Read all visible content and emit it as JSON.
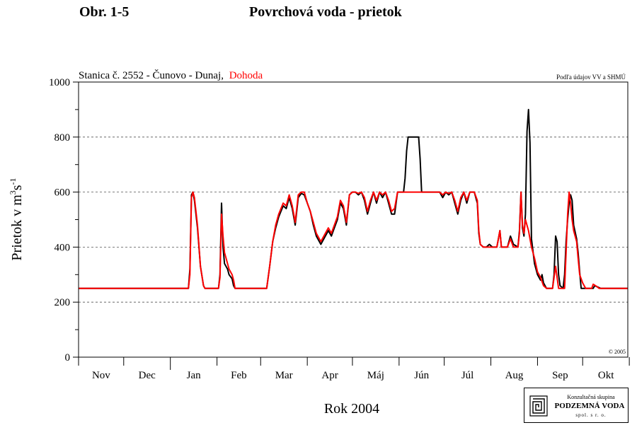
{
  "figure": {
    "label": "Obr. 1-5",
    "title": "Povrchová voda - prietok"
  },
  "chart_data": {
    "type": "line",
    "station_text": "Stanica č. 2552 - Čunovo - Dunaj,",
    "station_highlight": "Dohoda",
    "source_note": "Podľa údajov VV a SHMÚ",
    "copyright": "© 2005",
    "ylabel_main": "Prietok  v  m",
    "ylabel_sup1": "3",
    "ylabel_mid": "s",
    "ylabel_sup2": "-1",
    "xlabel": "Rok 2004",
    "ylim": [
      0,
      1000
    ],
    "yticks": [
      "0",
      "200",
      "400",
      "600",
      "800",
      "1000"
    ],
    "grid_lines": [
      200,
      400,
      600,
      800
    ],
    "xlim": [
      0,
      365
    ],
    "months": [
      "Nov",
      "Dec",
      "Jan",
      "Feb",
      "Mar",
      "Apr",
      "Máj",
      "Jún",
      "Júl",
      "Aug",
      "Sep",
      "Okt"
    ],
    "month_lengths": [
      30,
      31,
      31,
      29,
      31,
      30,
      31,
      30,
      31,
      31,
      30,
      31
    ],
    "series": [
      {
        "name": "",
        "color": "#000000",
        "points": [
          [
            0,
            250
          ],
          [
            73,
            250
          ],
          [
            74,
            320
          ],
          [
            75,
            590
          ],
          [
            76,
            600
          ],
          [
            77,
            570
          ],
          [
            79,
            470
          ],
          [
            81,
            330
          ],
          [
            83,
            260
          ],
          [
            84,
            250
          ],
          [
            93,
            250
          ],
          [
            94,
            300
          ],
          [
            95,
            560
          ],
          [
            96,
            400
          ],
          [
            97,
            340
          ],
          [
            99,
            320
          ],
          [
            100,
            300
          ],
          [
            102,
            285
          ],
          [
            103,
            260
          ],
          [
            104,
            250
          ],
          [
            125,
            250
          ],
          [
            127,
            330
          ],
          [
            129,
            420
          ],
          [
            131,
            470
          ],
          [
            133,
            510
          ],
          [
            136,
            550
          ],
          [
            138,
            540
          ],
          [
            140,
            580
          ],
          [
            142,
            540
          ],
          [
            144,
            480
          ],
          [
            146,
            580
          ],
          [
            148,
            595
          ],
          [
            150,
            590
          ],
          [
            152,
            560
          ],
          [
            154,
            530
          ],
          [
            156,
            480
          ],
          [
            158,
            440
          ],
          [
            161,
            410
          ],
          [
            164,
            440
          ],
          [
            166,
            460
          ],
          [
            168,
            440
          ],
          [
            170,
            470
          ],
          [
            172,
            500
          ],
          [
            174,
            560
          ],
          [
            176,
            540
          ],
          [
            178,
            480
          ],
          [
            180,
            590
          ],
          [
            182,
            600
          ],
          [
            184,
            600
          ],
          [
            186,
            590
          ],
          [
            188,
            600
          ],
          [
            190,
            570
          ],
          [
            192,
            520
          ],
          [
            194,
            560
          ],
          [
            196,
            600
          ],
          [
            198,
            560
          ],
          [
            200,
            600
          ],
          [
            202,
            580
          ],
          [
            204,
            600
          ],
          [
            206,
            560
          ],
          [
            208,
            520
          ],
          [
            210,
            520
          ],
          [
            212,
            600
          ],
          [
            214,
            600
          ],
          [
            216,
            600
          ],
          [
            217,
            650
          ],
          [
            218,
            750
          ],
          [
            219,
            800
          ],
          [
            226,
            800
          ],
          [
            227,
            720
          ],
          [
            228,
            600
          ],
          [
            240,
            600
          ],
          [
            242,
            580
          ],
          [
            244,
            600
          ],
          [
            246,
            590
          ],
          [
            248,
            600
          ],
          [
            250,
            560
          ],
          [
            252,
            520
          ],
          [
            254,
            570
          ],
          [
            256,
            600
          ],
          [
            258,
            560
          ],
          [
            260,
            600
          ],
          [
            263,
            600
          ],
          [
            265,
            560
          ],
          [
            266,
            450
          ],
          [
            267,
            410
          ],
          [
            269,
            400
          ],
          [
            271,
            400
          ],
          [
            273,
            410
          ],
          [
            275,
            400
          ],
          [
            278,
            400
          ],
          [
            280,
            460
          ],
          [
            281,
            400
          ],
          [
            285,
            400
          ],
          [
            287,
            440
          ],
          [
            289,
            410
          ],
          [
            292,
            400
          ],
          [
            293,
            460
          ],
          [
            294,
            600
          ],
          [
            295,
            470
          ],
          [
            296,
            440
          ],
          [
            297,
            520
          ],
          [
            298,
            820
          ],
          [
            299,
            900
          ],
          [
            300,
            780
          ],
          [
            301,
            430
          ],
          [
            303,
            340
          ],
          [
            305,
            300
          ],
          [
            307,
            280
          ],
          [
            308,
            300
          ],
          [
            309,
            270
          ],
          [
            311,
            250
          ],
          [
            315,
            250
          ],
          [
            316,
            300
          ],
          [
            317,
            440
          ],
          [
            318,
            420
          ],
          [
            319,
            300
          ],
          [
            320,
            260
          ],
          [
            322,
            250
          ],
          [
            323,
            300
          ],
          [
            324,
            420
          ],
          [
            325,
            500
          ],
          [
            326,
            560
          ],
          [
            327,
            590
          ],
          [
            328,
            570
          ],
          [
            329,
            480
          ],
          [
            331,
            430
          ],
          [
            332,
            380
          ],
          [
            333,
            310
          ],
          [
            334,
            250
          ],
          [
            342,
            250
          ],
          [
            343,
            260
          ],
          [
            345,
            255
          ],
          [
            347,
            250
          ],
          [
            365,
            250
          ]
        ]
      },
      {
        "name": "Dohoda",
        "color": "#ff0000",
        "points": [
          [
            0,
            250
          ],
          [
            73,
            250
          ],
          [
            74,
            300
          ],
          [
            75,
            580
          ],
          [
            76,
            600
          ],
          [
            77,
            580
          ],
          [
            79,
            480
          ],
          [
            81,
            330
          ],
          [
            83,
            260
          ],
          [
            84,
            250
          ],
          [
            93,
            250
          ],
          [
            94,
            290
          ],
          [
            95,
            520
          ],
          [
            96,
            440
          ],
          [
            97,
            380
          ],
          [
            98,
            360
          ],
          [
            100,
            320
          ],
          [
            102,
            300
          ],
          [
            103,
            280
          ],
          [
            104,
            250
          ],
          [
            125,
            250
          ],
          [
            127,
            330
          ],
          [
            129,
            420
          ],
          [
            131,
            480
          ],
          [
            133,
            520
          ],
          [
            136,
            560
          ],
          [
            138,
            550
          ],
          [
            140,
            590
          ],
          [
            142,
            550
          ],
          [
            144,
            490
          ],
          [
            146,
            590
          ],
          [
            148,
            600
          ],
          [
            150,
            600
          ],
          [
            152,
            560
          ],
          [
            154,
            530
          ],
          [
            156,
            490
          ],
          [
            158,
            450
          ],
          [
            161,
            420
          ],
          [
            164,
            450
          ],
          [
            166,
            470
          ],
          [
            168,
            450
          ],
          [
            170,
            480
          ],
          [
            172,
            510
          ],
          [
            174,
            570
          ],
          [
            176,
            550
          ],
          [
            178,
            490
          ],
          [
            180,
            590
          ],
          [
            182,
            600
          ],
          [
            184,
            600
          ],
          [
            186,
            595
          ],
          [
            188,
            600
          ],
          [
            190,
            580
          ],
          [
            192,
            530
          ],
          [
            194,
            570
          ],
          [
            196,
            600
          ],
          [
            198,
            570
          ],
          [
            200,
            600
          ],
          [
            202,
            590
          ],
          [
            204,
            600
          ],
          [
            206,
            570
          ],
          [
            208,
            530
          ],
          [
            210,
            540
          ],
          [
            212,
            600
          ],
          [
            228,
            600
          ],
          [
            240,
            600
          ],
          [
            242,
            590
          ],
          [
            244,
            600
          ],
          [
            246,
            595
          ],
          [
            248,
            600
          ],
          [
            250,
            570
          ],
          [
            252,
            530
          ],
          [
            254,
            580
          ],
          [
            256,
            600
          ],
          [
            258,
            570
          ],
          [
            260,
            600
          ],
          [
            263,
            600
          ],
          [
            265,
            570
          ],
          [
            266,
            460
          ],
          [
            267,
            410
          ],
          [
            269,
            400
          ],
          [
            278,
            400
          ],
          [
            280,
            460
          ],
          [
            281,
            400
          ],
          [
            285,
            400
          ],
          [
            287,
            430
          ],
          [
            289,
            400
          ],
          [
            292,
            400
          ],
          [
            293,
            450
          ],
          [
            294,
            600
          ],
          [
            295,
            480
          ],
          [
            296,
            450
          ],
          [
            297,
            500
          ],
          [
            299,
            460
          ],
          [
            300,
            430
          ],
          [
            301,
            400
          ],
          [
            303,
            360
          ],
          [
            305,
            310
          ],
          [
            307,
            290
          ],
          [
            309,
            260
          ],
          [
            311,
            250
          ],
          [
            315,
            250
          ],
          [
            317,
            330
          ],
          [
            318,
            290
          ],
          [
            319,
            250
          ],
          [
            323,
            250
          ],
          [
            324,
            380
          ],
          [
            325,
            520
          ],
          [
            326,
            600
          ],
          [
            327,
            560
          ],
          [
            328,
            500
          ],
          [
            329,
            460
          ],
          [
            331,
            420
          ],
          [
            332,
            360
          ],
          [
            333,
            300
          ],
          [
            335,
            270
          ],
          [
            337,
            250
          ],
          [
            341,
            250
          ],
          [
            342,
            265
          ],
          [
            344,
            258
          ],
          [
            346,
            250
          ],
          [
            365,
            250
          ]
        ]
      }
    ],
    "grid": true,
    "legend": "none"
  },
  "logo": {
    "top_text": "Konzultačná skupina",
    "name": "PODZEMNÁ VODA",
    "bottom_text": "spol. s r. o."
  }
}
